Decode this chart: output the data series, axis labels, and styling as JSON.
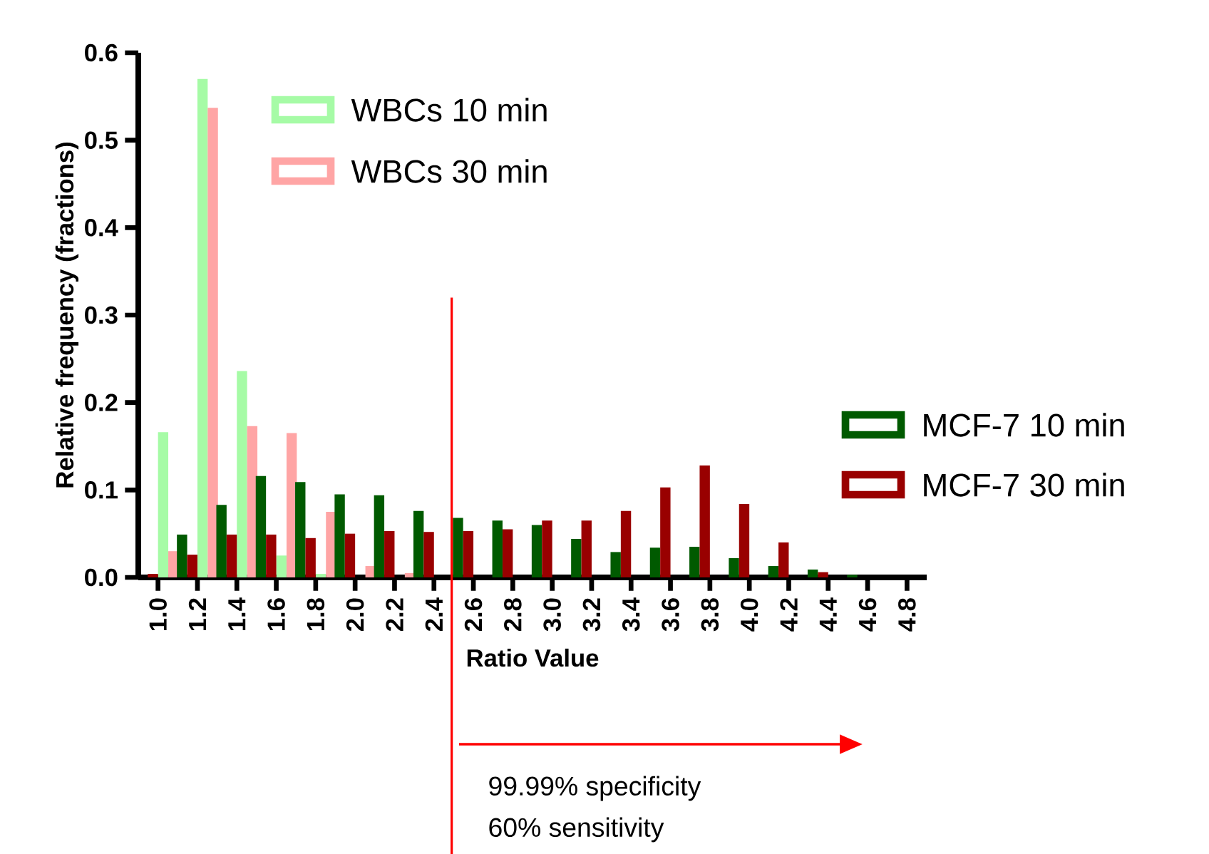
{
  "chart_data": {
    "type": "bar",
    "xlabel": "Ratio Value",
    "ylabel": "Relative frequency (fractions)",
    "x": [
      1.0,
      1.2,
      1.4,
      1.6,
      1.8,
      2.0,
      2.2,
      2.4,
      2.6,
      2.8,
      3.0,
      3.2,
      3.4,
      3.6,
      3.8,
      4.0,
      4.2,
      4.4,
      4.6,
      4.8
    ],
    "series": [
      {
        "name": "WBCs 10 min",
        "color": "#a6fba6",
        "values": [
          0.166,
          0.57,
          0.236,
          0.025,
          0.004,
          null,
          0,
          0,
          0,
          0,
          0,
          0,
          0,
          0,
          0,
          0,
          0,
          0,
          0,
          0
        ]
      },
      {
        "name": "WBCs 30 min",
        "color": "#ffa5a5",
        "values": [
          0.03,
          0.537,
          0.173,
          0.165,
          0.075,
          0.013,
          0.005,
          0,
          0,
          0,
          0,
          0,
          0,
          0,
          0,
          0,
          0,
          0,
          0,
          0
        ]
      },
      {
        "name": "MCF-7 10 min",
        "color": "#005a00",
        "values": [
          0,
          0.049,
          0.083,
          0.116,
          0.109,
          0.095,
          0.094,
          0.076,
          0.068,
          0.065,
          0.06,
          0.044,
          0.029,
          0.034,
          0.035,
          0.022,
          0.013,
          0.009,
          0.003,
          0
        ]
      },
      {
        "name": "MCF-7 30 min",
        "color": "#990000",
        "values": [
          0.004,
          0.026,
          0.049,
          0.049,
          0.045,
          0.05,
          0.053,
          0.052,
          0.053,
          0.055,
          0.065,
          0.065,
          0.076,
          0.103,
          0.128,
          0.084,
          0.04,
          0.006,
          0,
          0
        ]
      }
    ],
    "xlim": [
      0.9,
      4.9
    ],
    "ylim": [
      0,
      0.6
    ],
    "xticks": [
      {
        "value": 1.0,
        "label": "1.0"
      },
      1.2,
      1.4,
      1.6,
      1.8,
      {
        "value": 2.0,
        "label": "2.0"
      },
      2.2,
      2.4,
      2.6,
      2.8,
      {
        "value": 3.0,
        "label": "3.0"
      },
      3.2,
      3.4,
      3.6,
      3.8,
      {
        "value": 4.0,
        "label": "4.0"
      },
      4.2,
      4.4,
      4.6,
      4.8
    ],
    "yticks": [
      {
        "value": 0,
        "label": "0.0"
      },
      0.1,
      0.2,
      0.3,
      0.4,
      0.5,
      0.6
    ],
    "ref_lines": [
      {
        "axis": "x",
        "value": 2.49,
        "color": "#ff0000"
      }
    ],
    "annotations": [
      "99.99% specificity",
      "60% sensitivity"
    ],
    "legend": "right"
  }
}
